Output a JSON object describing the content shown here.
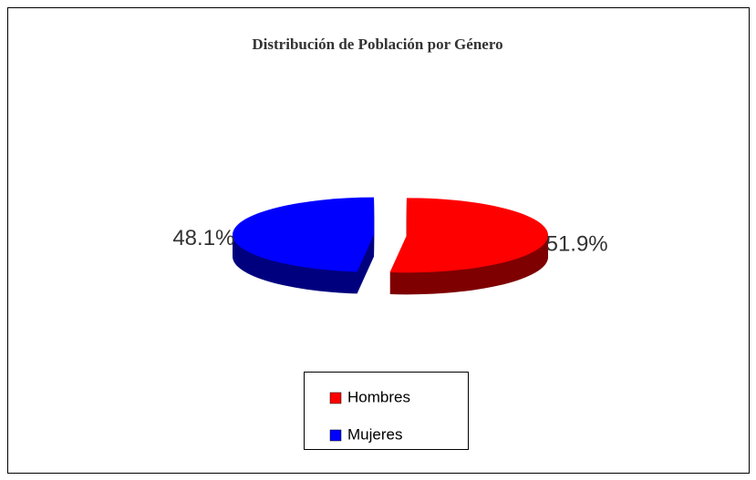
{
  "chart_data": {
    "type": "pie3d",
    "title": "Distribución de Población por Género",
    "categories": [
      "Hombres",
      "Mujeres"
    ],
    "values": [
      51.9,
      48.1
    ],
    "value_labels": [
      "51.9%",
      "48.1%"
    ],
    "colors": [
      "#ff0000",
      "#0000ff"
    ],
    "legend": "bottom"
  }
}
